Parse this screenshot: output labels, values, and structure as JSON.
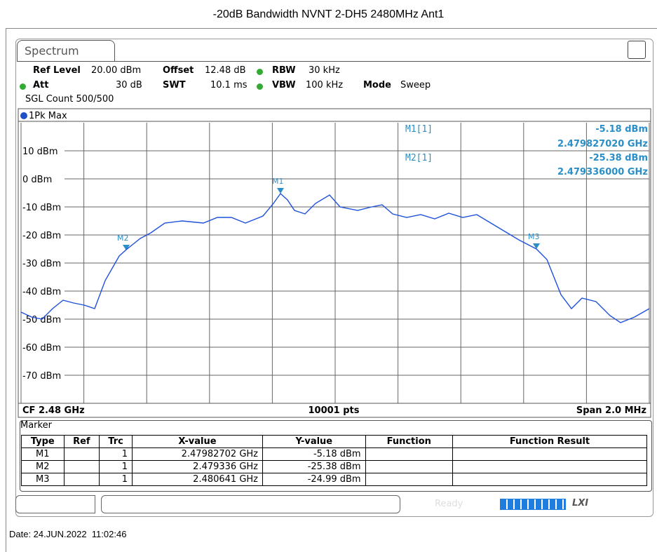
{
  "title": "-20dB Bandwidth NVNT 2-DH5 2480MHz Ant1",
  "tab": "Spectrum",
  "settings": {
    "ref_level_label": "Ref Level",
    "ref_level": "20.00 dBm",
    "offset_label": "Offset",
    "offset": "12.48 dB",
    "rbw_label": "RBW",
    "rbw": "30 kHz",
    "att_label": "Att",
    "att": "30 dB",
    "swt_label": "SWT",
    "swt": "10.1 ms",
    "vbw_label": "VBW",
    "vbw": "100 kHz",
    "mode_label": "Mode",
    "mode": "Sweep",
    "sgl_count": "SGL Count 500/500"
  },
  "trace_label": "1Pk Max",
  "y_labels": [
    "10 dBm",
    "0 dBm",
    "-10 dBm",
    "-20 dBm",
    "-30 dBm",
    "-40 dBm",
    "-50 dBm",
    "-60 dBm",
    "-70 dBm"
  ],
  "marker_readout": [
    {
      "name": "M1[1]",
      "level": "-5.18 dBm",
      "freq": "2.479827020 GHz"
    },
    {
      "name": "M2[1]",
      "level": "-25.38 dBm",
      "freq": "2.479336000 GHz"
    }
  ],
  "marker_tags": [
    "M1",
    "M2",
    "M3"
  ],
  "footer": {
    "cf": "CF 2.48 GHz",
    "pts": "10001 pts",
    "span": "Span 2.0 MHz"
  },
  "marker_table": {
    "title": "Marker",
    "headers": [
      "Type",
      "Ref",
      "Trc",
      "X-value",
      "Y-value",
      "Function",
      "Function Result"
    ],
    "rows": [
      [
        "M1",
        "",
        "1",
        "2.47982702 GHz",
        "-5.18 dBm",
        "",
        ""
      ],
      [
        "M2",
        "",
        "1",
        "2.479336 GHz",
        "-25.38 dBm",
        "",
        ""
      ],
      [
        "M3",
        "",
        "1",
        "2.480641 GHz",
        "-24.99 dBm",
        "",
        ""
      ]
    ]
  },
  "status": {
    "ready": "Ready",
    "lxi": "LXI"
  },
  "date": "Date: 24.JUN.2022  11:02:46"
}
